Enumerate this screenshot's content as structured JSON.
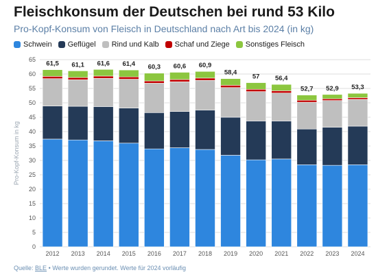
{
  "header": {
    "title": "Fleischkonsum der Deutschen bei rund 53 Kilo",
    "subtitle": "Pro-Kopf-Konsum von Fleisch in Deutschland nach Art bis 2024 (in kg)"
  },
  "footer": {
    "source_label": "Quelle:",
    "source_link": "BLE",
    "note": "• Werte wurden gerundet. Werte für 2024 vorläufig"
  },
  "colors": {
    "schwein": "#2e86de",
    "gefluegel": "#243a57",
    "rind_kalb": "#bfbfbf",
    "schaf_ziege": "#c00000",
    "sonstiges": "#8cc63f",
    "grid": "#dddddd",
    "axis_text": "#555555",
    "total_text": "#222222"
  },
  "chart_data": {
    "type": "bar",
    "stacked": true,
    "categories": [
      "2012",
      "2013",
      "2014",
      "2015",
      "2016",
      "2017",
      "2018",
      "2019",
      "2020",
      "2021",
      "2022",
      "2023",
      "2024"
    ],
    "series": [
      {
        "name": "Schwein",
        "color_key": "schwein",
        "values": [
          37.4,
          37.1,
          36.8,
          36.0,
          34.0,
          34.4,
          33.8,
          31.8,
          30.2,
          30.5,
          28.5,
          28.3,
          28.5
        ]
      },
      {
        "name": "Geflügel",
        "color_key": "gefluegel",
        "values": [
          11.5,
          11.7,
          11.9,
          12.2,
          12.6,
          12.6,
          13.7,
          13.2,
          13.5,
          13.2,
          12.4,
          13.2,
          13.4
        ]
      },
      {
        "name": "Rind und Kalb",
        "color_key": "rind_kalb",
        "values": [
          9.5,
          9.2,
          9.8,
          10.0,
          10.2,
          10.3,
          10.3,
          10.3,
          10.2,
          9.7,
          9.3,
          9.3,
          9.3
        ]
      },
      {
        "name": "Schaf und Ziege",
        "color_key": "schaf_ziege",
        "values": [
          0.8,
          0.8,
          0.8,
          0.8,
          0.8,
          0.8,
          0.8,
          0.8,
          0.8,
          0.8,
          0.7,
          0.6,
          0.6
        ]
      },
      {
        "name": "Sonstiges Fleisch",
        "color_key": "sonstiges",
        "values": [
          2.3,
          2.3,
          2.3,
          2.4,
          2.7,
          2.5,
          2.3,
          2.3,
          2.3,
          2.2,
          1.8,
          1.5,
          1.5
        ]
      }
    ],
    "totals": [
      "61,5",
      "61,1",
      "61,6",
      "61,4",
      "60,3",
      "60,6",
      "60,9",
      "58,4",
      "57",
      "56,4",
      "52,7",
      "52,9",
      "53,3"
    ],
    "ylabel": "Pro-Kopf-Konsum in kg",
    "xlabel": "",
    "ylim": [
      0,
      65
    ],
    "yticks": [
      0,
      5,
      10,
      15,
      20,
      25,
      30,
      35,
      40,
      45,
      50,
      55,
      60,
      65
    ],
    "grid": true,
    "legend_position": "top-left"
  }
}
